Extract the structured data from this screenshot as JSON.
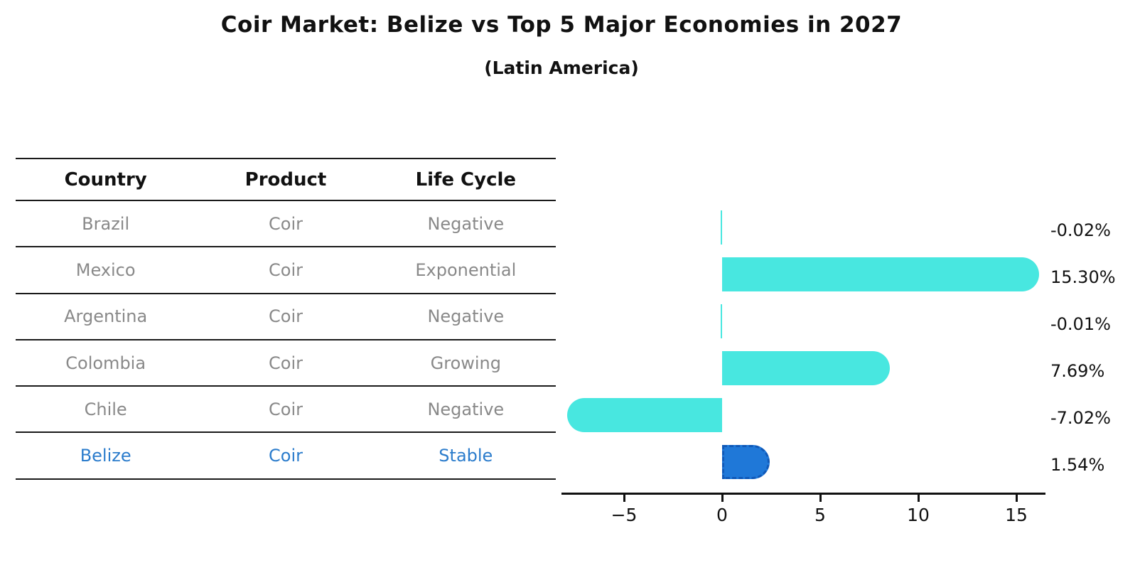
{
  "title": "Coir Market: Belize vs Top 5 Major Economies in 2027",
  "subtitle": "(Latin America)",
  "table": {
    "headers": [
      "Country",
      "Product",
      "Life Cycle"
    ],
    "rows": [
      {
        "country": "Brazil",
        "product": "Coir",
        "life_cycle": "Negative",
        "highlight": false
      },
      {
        "country": "Mexico",
        "product": "Coir",
        "life_cycle": "Exponential",
        "highlight": false
      },
      {
        "country": "Argentina",
        "product": "Coir",
        "life_cycle": "Negative",
        "highlight": false
      },
      {
        "country": "Colombia",
        "product": "Coir",
        "life_cycle": "Growing",
        "highlight": false
      },
      {
        "country": "Chile",
        "product": "Coir",
        "life_cycle": "Negative",
        "highlight": false
      },
      {
        "country": "Belize",
        "product": "Coir",
        "life_cycle": "Stable",
        "highlight": true
      }
    ]
  },
  "chart_data": {
    "type": "bar",
    "orientation": "horizontal",
    "title": "Coir Market: Belize vs Top 5 Major Economies in 2027 (Latin America)",
    "categories": [
      "Brazil",
      "Mexico",
      "Argentina",
      "Colombia",
      "Chile",
      "Belize"
    ],
    "values": [
      -0.02,
      15.3,
      -0.01,
      7.69,
      -7.02,
      1.54
    ],
    "value_labels": [
      "-0.02%",
      "15.30%",
      "-0.01%",
      "7.69%",
      "-7.02%",
      "1.54%"
    ],
    "unit": "percent",
    "x_ticks": [
      -5,
      0,
      5,
      10,
      15
    ],
    "x_tick_labels": [
      "−5",
      "0",
      "5",
      "10",
      "15"
    ],
    "xlim": [
      -8.2,
      16.5
    ],
    "grid": false,
    "legend": "none",
    "highlight_category": "Belize",
    "colors": {
      "bar": "#48e7e0",
      "highlight_bar": "#1f78d8",
      "highlight_text": "#2b7ccc",
      "row_text": "#898989",
      "axis": "#111111",
      "label_text": "#111111"
    }
  }
}
